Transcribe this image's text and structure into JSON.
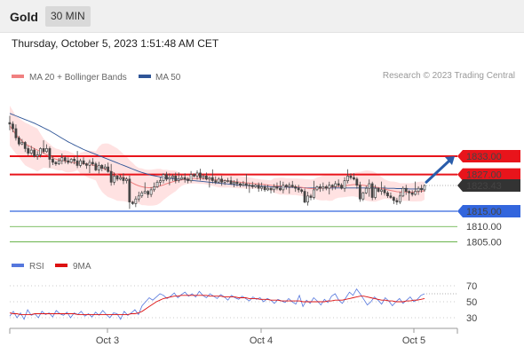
{
  "header": {
    "title": "Gold",
    "timeframe": "30 MIN",
    "datetime": "Thursday, October 5, 2023 1:51:48 AM CET",
    "credit": "Research © 2023 Trading Central"
  },
  "colors": {
    "resistance": "#e8141b",
    "support": "#3366dd",
    "green_level": "#55aa33",
    "ma20": "#f08080",
    "band": "#ffd6d6",
    "ma50": "#2f5597",
    "candle": "#444444",
    "rsi": "#5577dd",
    "rsi_ma": "#dd1111",
    "current": "#333333",
    "arrow": "#2a5dab"
  },
  "chart_data": [
    {
      "type": "candlestick",
      "legend": [
        {
          "label": "MA 20 + Bollinger Bands",
          "color": "#f08080"
        },
        {
          "label": "MA 50",
          "color": "#2f5597"
        }
      ],
      "x_tick_labels": [
        "Oct 3",
        "Oct 4",
        "Oct 5"
      ],
      "levels": [
        {
          "label": "1833.00",
          "value": 1833.0,
          "kind": "resistance"
        },
        {
          "label": "1827.00",
          "value": 1827.0,
          "kind": "resistance"
        },
        {
          "label": "1815.00",
          "value": 1815.0,
          "kind": "support"
        },
        {
          "label": "1810.00",
          "value": 1810.0,
          "kind": "green"
        },
        {
          "label": "1805.00",
          "value": 1805.0,
          "kind": "green"
        }
      ],
      "current_price": {
        "label": "1823.43",
        "value": 1823.43
      },
      "ylim": [
        1799,
        1844
      ],
      "close": [
        1843.5,
        1842.0,
        1839.0,
        1837.0,
        1837.5,
        1835.5,
        1834.0,
        1835.0,
        1833.0,
        1833.5,
        1835.5,
        1834.5,
        1835.5,
        1832.0,
        1831.0,
        1830.5,
        1831.5,
        1832.5,
        1831.5,
        1831.0,
        1832.0,
        1831.5,
        1830.0,
        1831.5,
        1830.5,
        1830.0,
        1831.0,
        1830.5,
        1828.5,
        1830.0,
        1829.0,
        1829.5,
        1828.0,
        1824.5,
        1826.5,
        1825.5,
        1826.0,
        1825.0,
        1825.5,
        1818.0,
        1817.5,
        1819.0,
        1820.0,
        1821.0,
        1821.5,
        1820.5,
        1822.0,
        1823.0,
        1824.5,
        1825.0,
        1827.0,
        1825.5,
        1826.0,
        1826.5,
        1825.0,
        1825.5,
        1826.0,
        1825.5,
        1825.0,
        1827.0,
        1826.5,
        1827.5,
        1826.0,
        1826.5,
        1825.5,
        1826.0,
        1825.0,
        1824.5,
        1825.5,
        1824.5,
        1825.0,
        1825.0,
        1824.0,
        1824.5,
        1824.0,
        1823.5,
        1824.0,
        1823.5,
        1823.5,
        1823.0,
        1823.5,
        1822.5,
        1823.0,
        1822.0,
        1822.5,
        1822.0,
        1823.0,
        1822.5,
        1822.0,
        1823.5,
        1823.0,
        1823.5,
        1823.0,
        1822.5,
        1822.0,
        1821.5,
        1818.0,
        1820.0,
        1819.5,
        1822.0,
        1823.0,
        1822.5,
        1823.0,
        1822.5,
        1823.5,
        1823.0,
        1824.0,
        1823.5,
        1822.5,
        1825.0,
        1826.5,
        1826.0,
        1825.5,
        1823.5,
        1819.0,
        1821.0,
        1822.5,
        1824.0,
        1819.5,
        1822.5,
        1821.5,
        1822.0,
        1821.0,
        1820.0,
        1819.5,
        1818.5,
        1818.0,
        1820.0,
        1822.5,
        1821.5,
        1821.0,
        1820.5,
        1821.5,
        1822.5,
        1822.0,
        1823.43
      ],
      "ma20": [
        1843.0,
        1841.5,
        1840.0,
        1839.0,
        1838.0,
        1837.0,
        1836.5,
        1836.0,
        1835.5,
        1835.0,
        1834.5,
        1834.0,
        1833.5,
        1833.0,
        1832.5,
        1832.0,
        1831.8,
        1831.6,
        1831.4,
        1831.2,
        1831.0,
        1830.9,
        1830.8,
        1830.7,
        1830.6,
        1830.5,
        1830.3,
        1830.1,
        1829.8,
        1829.5,
        1829.2,
        1828.8,
        1828.4,
        1828.0,
        1827.5,
        1827.0,
        1826.5,
        1826.0,
        1825.5,
        1824.8,
        1824.2,
        1823.7,
        1823.3,
        1823.0,
        1822.8,
        1822.7,
        1822.7,
        1822.8,
        1823.0,
        1823.3,
        1823.6,
        1824.0,
        1824.3,
        1824.6,
        1824.9,
        1825.1,
        1825.3,
        1825.4,
        1825.5,
        1825.6,
        1825.7,
        1825.7,
        1825.7,
        1825.7,
        1825.6,
        1825.5,
        1825.4,
        1825.3,
        1825.2,
        1825.1,
        1825.0,
        1824.9,
        1824.8,
        1824.7,
        1824.6,
        1824.5,
        1824.4,
        1824.3,
        1824.2,
        1824.1,
        1824.0,
        1823.9,
        1823.8,
        1823.7,
        1823.6,
        1823.5,
        1823.4,
        1823.3,
        1823.2,
        1823.2,
        1823.1,
        1823.1,
        1823.0,
        1823.0,
        1822.9,
        1822.8,
        1822.6,
        1822.5,
        1822.4,
        1822.4,
        1822.4,
        1822.5,
        1822.6,
        1822.7,
        1822.8,
        1822.9,
        1823.0,
        1823.1,
        1823.2,
        1823.3,
        1823.5,
        1823.6,
        1823.7,
        1823.7,
        1823.6,
        1823.5,
        1823.4,
        1823.3,
        1823.1,
        1822.9,
        1822.7,
        1822.5,
        1822.3,
        1822.0,
        1821.8,
        1821.6,
        1821.4,
        1821.3,
        1821.3,
        1821.3,
        1821.2,
        1821.2,
        1821.3,
        1821.4,
        1821.5,
        1821.7
      ],
      "ma50": [
        1847.0,
        1846.6,
        1846.2,
        1845.8,
        1845.4,
        1845.0,
        1844.6,
        1844.2,
        1843.8,
        1843.3,
        1842.8,
        1842.3,
        1841.8,
        1841.3,
        1840.7,
        1840.1,
        1839.5,
        1838.9,
        1838.3,
        1837.7,
        1837.2,
        1836.7,
        1836.2,
        1835.7,
        1835.2,
        1834.8,
        1834.4,
        1834.0,
        1833.6,
        1833.2,
        1832.8,
        1832.4,
        1832.0,
        1831.6,
        1831.2,
        1830.8,
        1830.4,
        1830.0,
        1829.6,
        1829.2,
        1828.8,
        1828.4,
        1828.0,
        1827.7,
        1827.4,
        1827.1,
        1826.8,
        1826.6,
        1826.4,
        1826.2,
        1826.0,
        1825.9,
        1825.8,
        1825.7,
        1825.6,
        1825.5,
        1825.4,
        1825.3,
        1825.2,
        1825.1,
        1825.0,
        1824.9,
        1824.8,
        1824.7,
        1824.6,
        1824.5,
        1824.4,
        1824.3,
        1824.2,
        1824.1,
        1824.0,
        1823.9,
        1823.8,
        1823.7,
        1823.6,
        1823.5,
        1823.5,
        1823.4,
        1823.4,
        1823.3,
        1823.3,
        1823.2,
        1823.2,
        1823.1,
        1823.1,
        1823.0,
        1823.0,
        1823.0,
        1822.9,
        1822.9,
        1822.9,
        1822.8,
        1822.8,
        1822.8,
        1822.7,
        1822.7,
        1822.7,
        1822.6,
        1822.6,
        1822.6,
        1822.6,
        1822.6,
        1822.6,
        1822.6,
        1822.6,
        1822.6,
        1822.6,
        1822.6,
        1822.6,
        1822.6,
        1822.6,
        1822.6,
        1822.6,
        1822.6,
        1822.6,
        1822.6,
        1822.6,
        1822.6,
        1822.6,
        1822.6,
        1822.6,
        1822.6,
        1822.6,
        1822.5,
        1822.5,
        1822.5,
        1822.4,
        1822.4,
        1822.4,
        1822.4,
        1822.3,
        1822.3,
        1822.3,
        1822.3,
        1822.3,
        1822.3
      ]
    },
    {
      "type": "line",
      "legend": [
        {
          "label": "RSI",
          "color": "#5577dd"
        },
        {
          "label": "9MA",
          "color": "#dd1111"
        }
      ],
      "y_tick_labels": [
        "70",
        "50",
        "30"
      ],
      "y_ticks": [
        70,
        50,
        30
      ],
      "ylim": [
        15,
        85
      ],
      "rsi": [
        32,
        38,
        30,
        36,
        28,
        40,
        33,
        35,
        30,
        38,
        34,
        36,
        31,
        39,
        35,
        33,
        37,
        30,
        36,
        34,
        38,
        32,
        35,
        31,
        37,
        33,
        39,
        34,
        30,
        36,
        35,
        28,
        38,
        33,
        36,
        40,
        34,
        45,
        50,
        55,
        52,
        56,
        60,
        58,
        54,
        57,
        61,
        55,
        59,
        62,
        57,
        60,
        56,
        63,
        58,
        55,
        60,
        57,
        54,
        59,
        56,
        52,
        58,
        55,
        53,
        57,
        54,
        51,
        56,
        53,
        55,
        50,
        54,
        52,
        48,
        53,
        51,
        49,
        54,
        50,
        47,
        58,
        44,
        52,
        48,
        55,
        51,
        46,
        53,
        49,
        57,
        60,
        52,
        48,
        55,
        62,
        58,
        66,
        60,
        53,
        46,
        50,
        56,
        52,
        47,
        55,
        51,
        45,
        50,
        54,
        48,
        52,
        56,
        50,
        53,
        58,
        60
      ],
      "rsi_ma": [
        36,
        35,
        35,
        34,
        34,
        34,
        34,
        35,
        35,
        35,
        35,
        35,
        35,
        35,
        35,
        35,
        35,
        35,
        35,
        34,
        34,
        34,
        34,
        34,
        34,
        34,
        34,
        34,
        34,
        34,
        34,
        34,
        34,
        34,
        35,
        35,
        36,
        38,
        41,
        44,
        47,
        50,
        52,
        54,
        55,
        56,
        57,
        57,
        58,
        58,
        58,
        58,
        58,
        58,
        58,
        58,
        57,
        57,
        57,
        57,
        56,
        56,
        56,
        56,
        55,
        55,
        55,
        54,
        54,
        54,
        53,
        53,
        53,
        52,
        52,
        52,
        51,
        51,
        51,
        51,
        51,
        51,
        50,
        50,
        50,
        50,
        50,
        50,
        50,
        51,
        51,
        52,
        52,
        52,
        53,
        54,
        55,
        56,
        57,
        57,
        56,
        55,
        54,
        53,
        52,
        52,
        51,
        51,
        50,
        50,
        50,
        51,
        51,
        52,
        52,
        53,
        54
      ]
    }
  ]
}
